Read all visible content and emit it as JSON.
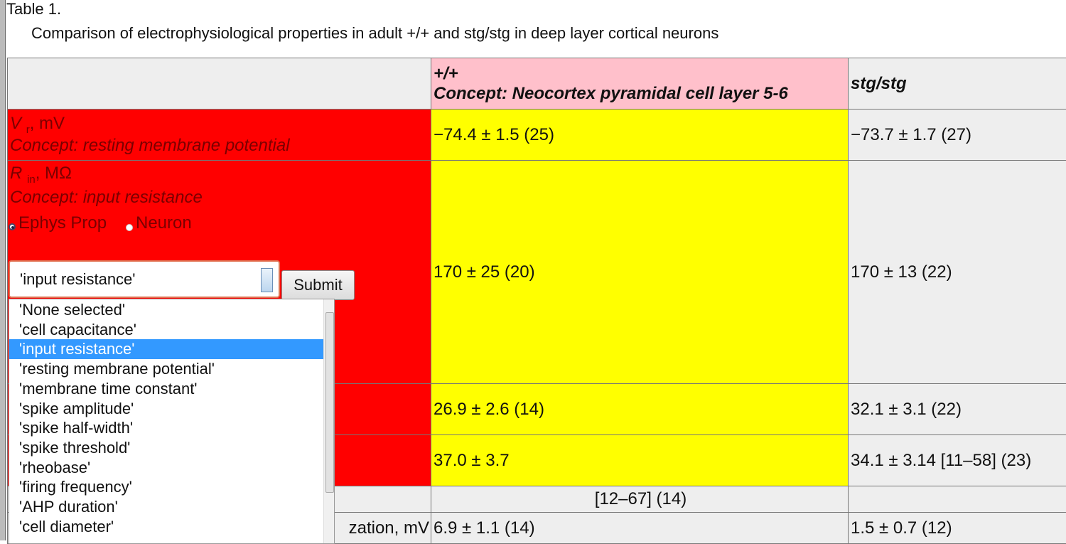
{
  "caption": {
    "label": "Table 1.",
    "title": "Comparison of electrophysiological properties in adult +/+ and stg/stg in deep layer cortical neurons"
  },
  "table": {
    "columns": [
      {
        "name": "+/+",
        "concept": "Concept: Neocortex pyramidal cell layer 5-6"
      },
      {
        "name": "stg/stg"
      }
    ],
    "rows": [
      {
        "symbol": "V",
        "subscript": "r",
        "unit": ", mV",
        "concept": "Concept: resting membrane potential",
        "cells": [
          "−74.4 ± 1.5 (25)",
          "−73.7 ± 1.7 (27)"
        ]
      },
      {
        "symbol": "R",
        "subscript": "in",
        "unit": ", MΩ",
        "concept": "Concept: input resistance",
        "cells": [
          "170 ± 25 (20)",
          "170 ± 13 (22)"
        ]
      },
      {
        "cells": [
          "26.9 ± 2.6 (14)",
          "32.1 ± 3.1 (22)"
        ]
      },
      {
        "cells": [
          "37.0 ± 3.7",
          "34.1 ± 3.14 [11–58] (23)"
        ]
      },
      {
        "cells": [
          "[12–67] (14)"
        ]
      },
      {
        "label": "zation, mV",
        "cells": [
          "6.9 ± 1.1 (14)",
          "1.5 ± 0.7 (12)"
        ]
      }
    ]
  },
  "form": {
    "radios": [
      "Ephys Prop",
      "Neuron"
    ],
    "selected": "'input resistance'",
    "submit": "Submit",
    "options": [
      "'None selected'",
      "'cell capacitance'",
      "'input resistance'",
      "'resting membrane potential'",
      "'membrane time constant'",
      "'spike amplitude'",
      "'spike half-width'",
      "'spike threshold'",
      "'rheobase'",
      "'firing frequency'",
      "'AHP duration'",
      "'cell diameter'"
    ],
    "highlighted": 2
  }
}
